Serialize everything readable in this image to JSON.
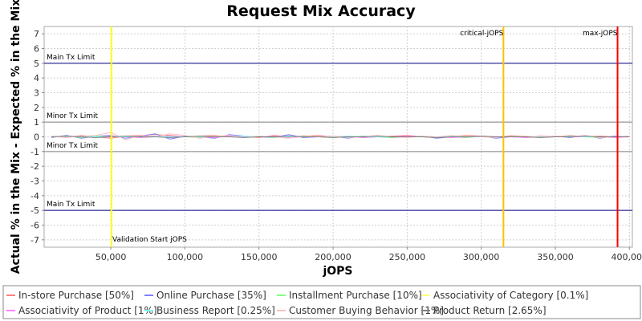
{
  "chart_data": {
    "type": "line",
    "title": "Request Mix Accuracy",
    "xlabel": "jOPS",
    "ylabel": "Actual % in the Mix - Expected % in the Mix",
    "xlim": [
      5000,
      402000
    ],
    "ylim": [
      -7.5,
      7.5
    ],
    "x_ticks": [
      50000,
      100000,
      150000,
      200000,
      250000,
      300000,
      350000,
      400000
    ],
    "x_tick_labels": [
      "50,000",
      "100,000",
      "150,000",
      "200,000",
      "250,000",
      "300,000",
      "350,000",
      "400,000"
    ],
    "y_ticks": [
      -7,
      -6,
      -5,
      -4,
      -3,
      -2,
      -1,
      0,
      1,
      2,
      3,
      4,
      5,
      6,
      7
    ],
    "y_tick_labels": [
      "-7",
      "-6",
      "-5",
      "-4",
      "-3",
      "-2",
      "-1",
      "0",
      "1",
      "2",
      "3",
      "4",
      "5",
      "6",
      "7"
    ],
    "grid": true,
    "legend_position": "bottom",
    "horizontal_lines": [
      {
        "label": "Main Tx Limit",
        "y": 5,
        "color": "#000080",
        "label_side": "above"
      },
      {
        "label": "Minor Tx Limit",
        "y": 1,
        "color": "#808080",
        "label_side": "above"
      },
      {
        "label": "Minor Tx Limit",
        "y": -1,
        "color": "#808080",
        "label_side": "above"
      },
      {
        "label": "Main Tx Limit",
        "y": -5,
        "color": "#000080",
        "label_side": "above"
      }
    ],
    "vertical_lines": [
      {
        "label": "Validation Start jOPS",
        "x": 50500,
        "color": "#ffff00",
        "label_pos": "bottom"
      },
      {
        "label": "critical-jOPS",
        "x": 315000,
        "color": "#ffc000",
        "label_pos": "top"
      },
      {
        "label": "max-jOPS",
        "x": 392000,
        "color": "#ff0000",
        "label_pos": "top"
      }
    ],
    "x": [
      10000,
      20000,
      30000,
      40000,
      50000,
      60000,
      70000,
      80000,
      90000,
      100000,
      110000,
      120000,
      130000,
      140000,
      150000,
      160000,
      170000,
      180000,
      190000,
      200000,
      210000,
      220000,
      230000,
      240000,
      250000,
      260000,
      270000,
      280000,
      290000,
      300000,
      310000,
      320000,
      330000,
      340000,
      350000,
      360000,
      370000,
      380000,
      390000,
      400000
    ],
    "series": [
      {
        "name": "In-store Purchase [50%]",
        "color": "#ff8080",
        "values": [
          0.05,
          -0.05,
          0.1,
          0,
          -0.1,
          0.05,
          0.1,
          0.15,
          0.1,
          0,
          0.05,
          0.1,
          0,
          0.05,
          -0.05,
          0.1,
          0,
          0.05,
          0.1,
          0,
          0.05,
          -0.05,
          0,
          0.05,
          0.1,
          0,
          -0.05,
          0.05,
          0.1,
          0.05,
          0,
          0.05,
          -0.05,
          0.05,
          0,
          0.1,
          0,
          0.05,
          0,
          0.05
        ]
      },
      {
        "name": "Online Purchase [35%]",
        "color": "#8080ff",
        "values": [
          -0.05,
          0.1,
          -0.1,
          0.05,
          0.1,
          -0.1,
          0.05,
          0.2,
          -0.15,
          0.05,
          0,
          -0.1,
          0.15,
          0.05,
          0,
          -0.05,
          0.15,
          -0.05,
          0,
          0.05,
          -0.1,
          0.05,
          0,
          -0.05,
          0,
          0.05,
          -0.1,
          0,
          -0.05,
          0.05,
          -0.1,
          0,
          0.05,
          -0.05,
          0.05,
          -0.05,
          0.1,
          -0.1,
          0.05,
          0
        ]
      },
      {
        "name": "Installment Purchase [10%]",
        "color": "#80ff80",
        "values": [
          0,
          0.05,
          -0.05,
          0.05,
          0,
          0.05,
          -0.05,
          0,
          0.05,
          0,
          -0.05,
          0.05,
          0,
          0,
          0.05,
          -0.05,
          0,
          0.05,
          0,
          -0.05,
          0,
          0.05,
          0,
          -0.05,
          0,
          0.05,
          0,
          0,
          -0.05,
          0.05,
          0,
          0,
          0.05,
          -0.05,
          0,
          0.05,
          0,
          -0.05,
          0,
          0
        ]
      },
      {
        "name": "Associativity of Category [0.1%]",
        "color": "#ffff80",
        "values": [
          0,
          0,
          0,
          0,
          0,
          0,
          0,
          0,
          0,
          0,
          0,
          0,
          0,
          0,
          0,
          0,
          0,
          0,
          0,
          0,
          0,
          0,
          0,
          0,
          0,
          0,
          0,
          0,
          0,
          0,
          0,
          0,
          0,
          0,
          0,
          0,
          0,
          0,
          0,
          0
        ]
      },
      {
        "name": "Associativity of Product [1%]",
        "color": "#ff80ff",
        "values": [
          0,
          0.05,
          0,
          -0.05,
          0.05,
          0,
          -0.05,
          0,
          0.05,
          0,
          0,
          -0.05,
          0.05,
          0,
          0,
          0.05,
          -0.05,
          0,
          0,
          0.05,
          0,
          -0.05,
          0,
          0,
          0.05,
          0,
          0,
          -0.05,
          0,
          0.05,
          0,
          0,
          -0.05,
          0,
          0.05,
          0,
          0,
          0,
          -0.05,
          0
        ]
      },
      {
        "name": "Business Report [0.25%]",
        "color": "#80ffff",
        "values": [
          0,
          0,
          0.05,
          0,
          0,
          0,
          0,
          0.05,
          0,
          0,
          0,
          0,
          0,
          0.05,
          0,
          0,
          0,
          0,
          0,
          0,
          0.05,
          0,
          0,
          0,
          0,
          0,
          0,
          0.05,
          0,
          0,
          0,
          0,
          0,
          0,
          0,
          0.05,
          0,
          0,
          0,
          0
        ]
      },
      {
        "name": "Customer Buying Behavior [1%]",
        "color": "#ffc0c0",
        "values": [
          0.05,
          -0.05,
          0.05,
          0.1,
          0.3,
          -0.2,
          0.1,
          0,
          0.2,
          0.1,
          -0.1,
          0.05,
          0.1,
          -0.05,
          0.05,
          0,
          -0.1,
          0.1,
          0,
          0.05,
          -0.05,
          0,
          0.1,
          0,
          -0.05,
          0.05,
          0,
          0.1,
          0.05,
          0,
          -0.05,
          0.1,
          0.05,
          -0.05,
          0.05,
          0,
          0.1,
          -0.05,
          0,
          0.05
        ]
      },
      {
        "name": "Product Return [2.65%]",
        "color": "#808080",
        "values": [
          0,
          0.05,
          0,
          -0.05,
          0,
          0.05,
          0,
          0,
          -0.05,
          0,
          0.05,
          0,
          0,
          -0.05,
          0,
          0,
          0.05,
          0,
          0,
          -0.05,
          0,
          0,
          0.05,
          0,
          0,
          0,
          -0.05,
          0,
          0,
          0.05,
          0,
          0,
          0,
          -0.05,
          0,
          0,
          0.05,
          0,
          0,
          0
        ]
      }
    ]
  }
}
